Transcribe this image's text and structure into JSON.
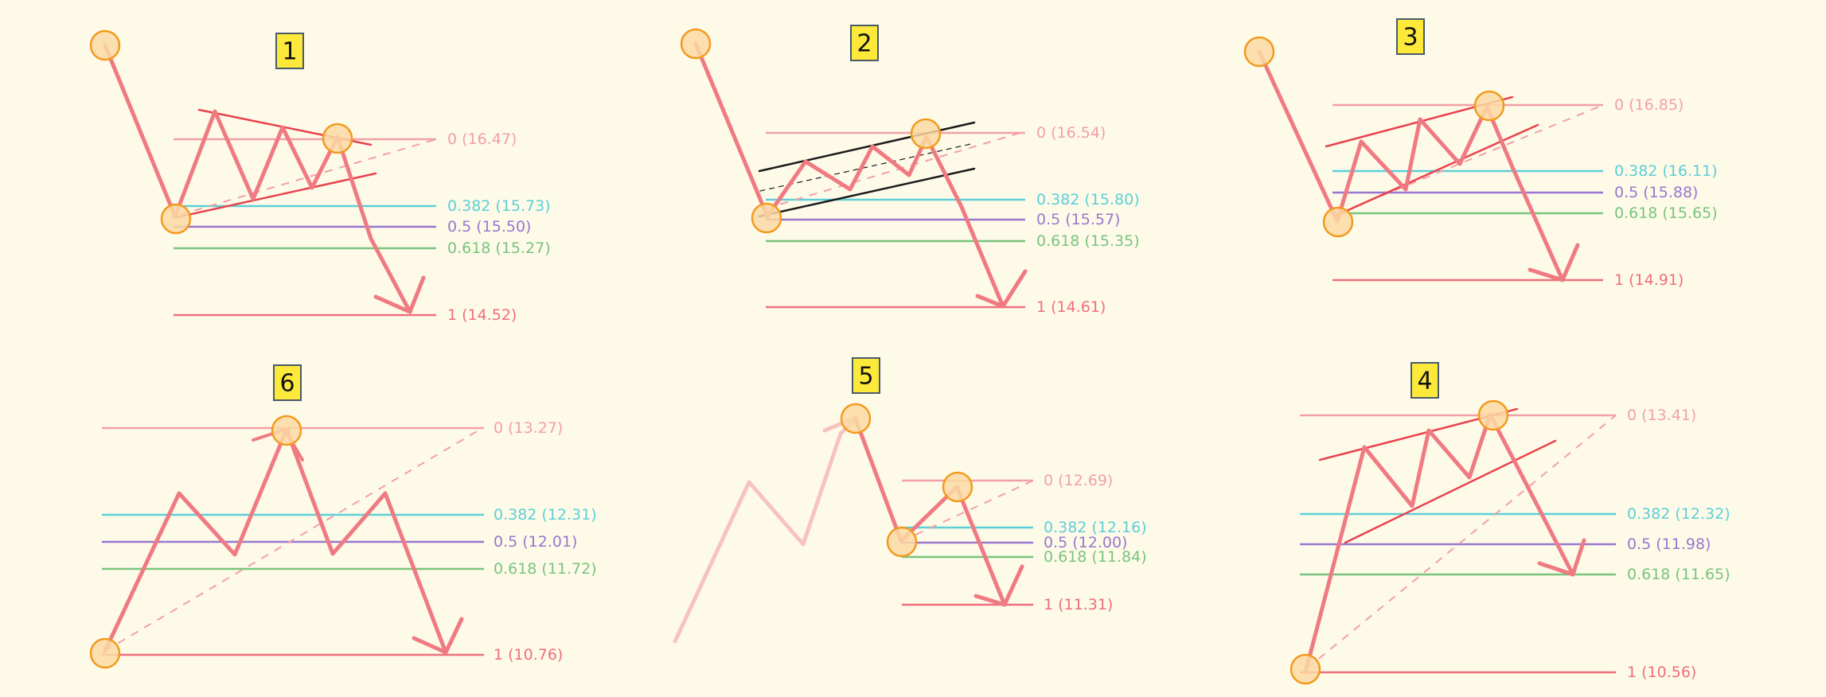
{
  "colors": {
    "background": "#fefae8",
    "price_line": "#f07a82",
    "price_line_faded": "#f7c3c0",
    "level_0": "#f2a0a6",
    "level_0382": "#5ccfd8",
    "level_05": "#9977cf",
    "level_0618": "#79c47f",
    "level_1": "#ee6f7b",
    "pivot_fill": "#fbd9a3",
    "pivot_stroke": "#f39a1e",
    "channel_black": "#1a1a1a",
    "channel_red": "#e8434f",
    "badge_fill": "#fde93a"
  },
  "panels": [
    {
      "id": "1",
      "badge": "1",
      "levels": [
        {
          "key": "level_0",
          "label": "0 (16.47)"
        },
        {
          "key": "level_0382",
          "label": "0.382 (15.73)"
        },
        {
          "key": "level_05",
          "label": "0.5 (15.50)"
        },
        {
          "key": "level_0618",
          "label": "0.618 (15.27)"
        },
        {
          "key": "level_1",
          "label": "1 (14.52)"
        }
      ]
    },
    {
      "id": "2",
      "badge": "2",
      "levels": [
        {
          "key": "level_0",
          "label": "0 (16.54)"
        },
        {
          "key": "level_0382",
          "label": "0.382 (15.80)"
        },
        {
          "key": "level_05",
          "label": "0.5 (15.57)"
        },
        {
          "key": "level_0618",
          "label": "0.618 (15.35)"
        },
        {
          "key": "level_1",
          "label": "1 (14.61)"
        }
      ]
    },
    {
      "id": "3",
      "badge": "3",
      "levels": [
        {
          "key": "level_0",
          "label": "0 (16.85)"
        },
        {
          "key": "level_0382",
          "label": "0.382 (16.11)"
        },
        {
          "key": "level_05",
          "label": "0.5 (15.88)"
        },
        {
          "key": "level_0618",
          "label": "0.618 (15.65)"
        },
        {
          "key": "level_1",
          "label": "1 (14.91)"
        }
      ]
    },
    {
      "id": "6",
      "badge": "6",
      "levels": [
        {
          "key": "level_0",
          "label": "0 (13.27)"
        },
        {
          "key": "level_0382",
          "label": "0.382 (12.31)"
        },
        {
          "key": "level_05",
          "label": "0.5 (12.01)"
        },
        {
          "key": "level_0618",
          "label": "0.618 (11.72)"
        },
        {
          "key": "level_1",
          "label": "1 (10.76)"
        }
      ]
    },
    {
      "id": "5",
      "badge": "5",
      "levels": [
        {
          "key": "level_0",
          "label": "0 (12.69)"
        },
        {
          "key": "level_0382",
          "label": "0.382 (12.16)"
        },
        {
          "key": "level_05",
          "label": "0.5 (12.00)"
        },
        {
          "key": "level_0618",
          "label": "0.618 (11.84)"
        },
        {
          "key": "level_1",
          "label": "1 (11.31)"
        }
      ]
    },
    {
      "id": "4",
      "badge": "4",
      "levels": [
        {
          "key": "level_0",
          "label": "0 (13.41)"
        },
        {
          "key": "level_0382",
          "label": "0.382 (12.32)"
        },
        {
          "key": "level_05",
          "label": "0.5 (11.98)"
        },
        {
          "key": "level_0618",
          "label": "0.618 (11.65)"
        },
        {
          "key": "level_1",
          "label": "1 (10.56)"
        }
      ]
    }
  ]
}
